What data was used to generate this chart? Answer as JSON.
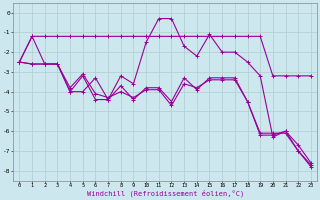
{
  "xlabel": "Windchill (Refroidissement éolien,°C)",
  "background_color": "#cce8ee",
  "grid_color": "#aacccc",
  "line_color": "#990099",
  "x_hours": [
    0,
    1,
    2,
    3,
    4,
    5,
    6,
    7,
    8,
    9,
    10,
    11,
    12,
    13,
    14,
    15,
    16,
    17,
    18,
    19,
    20,
    21,
    22,
    23
  ],
  "series1": [
    -2.5,
    -1.2,
    -1.2,
    -1.2,
    -1.2,
    -1.2,
    -1.2,
    -1.2,
    -1.2,
    -1.2,
    -1.2,
    -1.2,
    -1.2,
    -1.2,
    -1.2,
    -1.2,
    -1.2,
    -1.2,
    -1.2,
    -1.2,
    -3.2,
    -3.2,
    -3.2,
    -3.2
  ],
  "series2": [
    -2.5,
    -1.2,
    -2.6,
    -2.6,
    -4.0,
    -4.0,
    -3.3,
    -4.4,
    -3.2,
    -3.6,
    -1.5,
    -0.3,
    -0.3,
    -1.7,
    -2.2,
    -1.1,
    -2.0,
    -2.0,
    -2.5,
    -3.2,
    -6.3,
    -6.0,
    -6.7,
    -7.6
  ],
  "series3": [
    -2.5,
    -2.6,
    -2.6,
    -2.6,
    -4.0,
    -3.2,
    -4.4,
    -4.4,
    -3.7,
    -4.4,
    -3.8,
    -3.8,
    -4.5,
    -3.3,
    -3.9,
    -3.3,
    -3.3,
    -3.3,
    -4.5,
    -6.2,
    -6.2,
    -6.0,
    -7.0,
    -7.8
  ],
  "series4": [
    -2.5,
    -2.6,
    -2.6,
    -2.6,
    -3.8,
    -3.1,
    -4.1,
    -4.3,
    -4.0,
    -4.3,
    -3.9,
    -3.9,
    -4.7,
    -3.6,
    -3.8,
    -3.4,
    -3.4,
    -3.4,
    -4.5,
    -6.1,
    -6.1,
    -6.1,
    -7.0,
    -7.7
  ],
  "ylim": [
    -8.5,
    0.5
  ],
  "xlim": [
    -0.5,
    23.5
  ],
  "yticks": [
    0,
    -1,
    -2,
    -3,
    -4,
    -5,
    -6,
    -7,
    -8
  ]
}
